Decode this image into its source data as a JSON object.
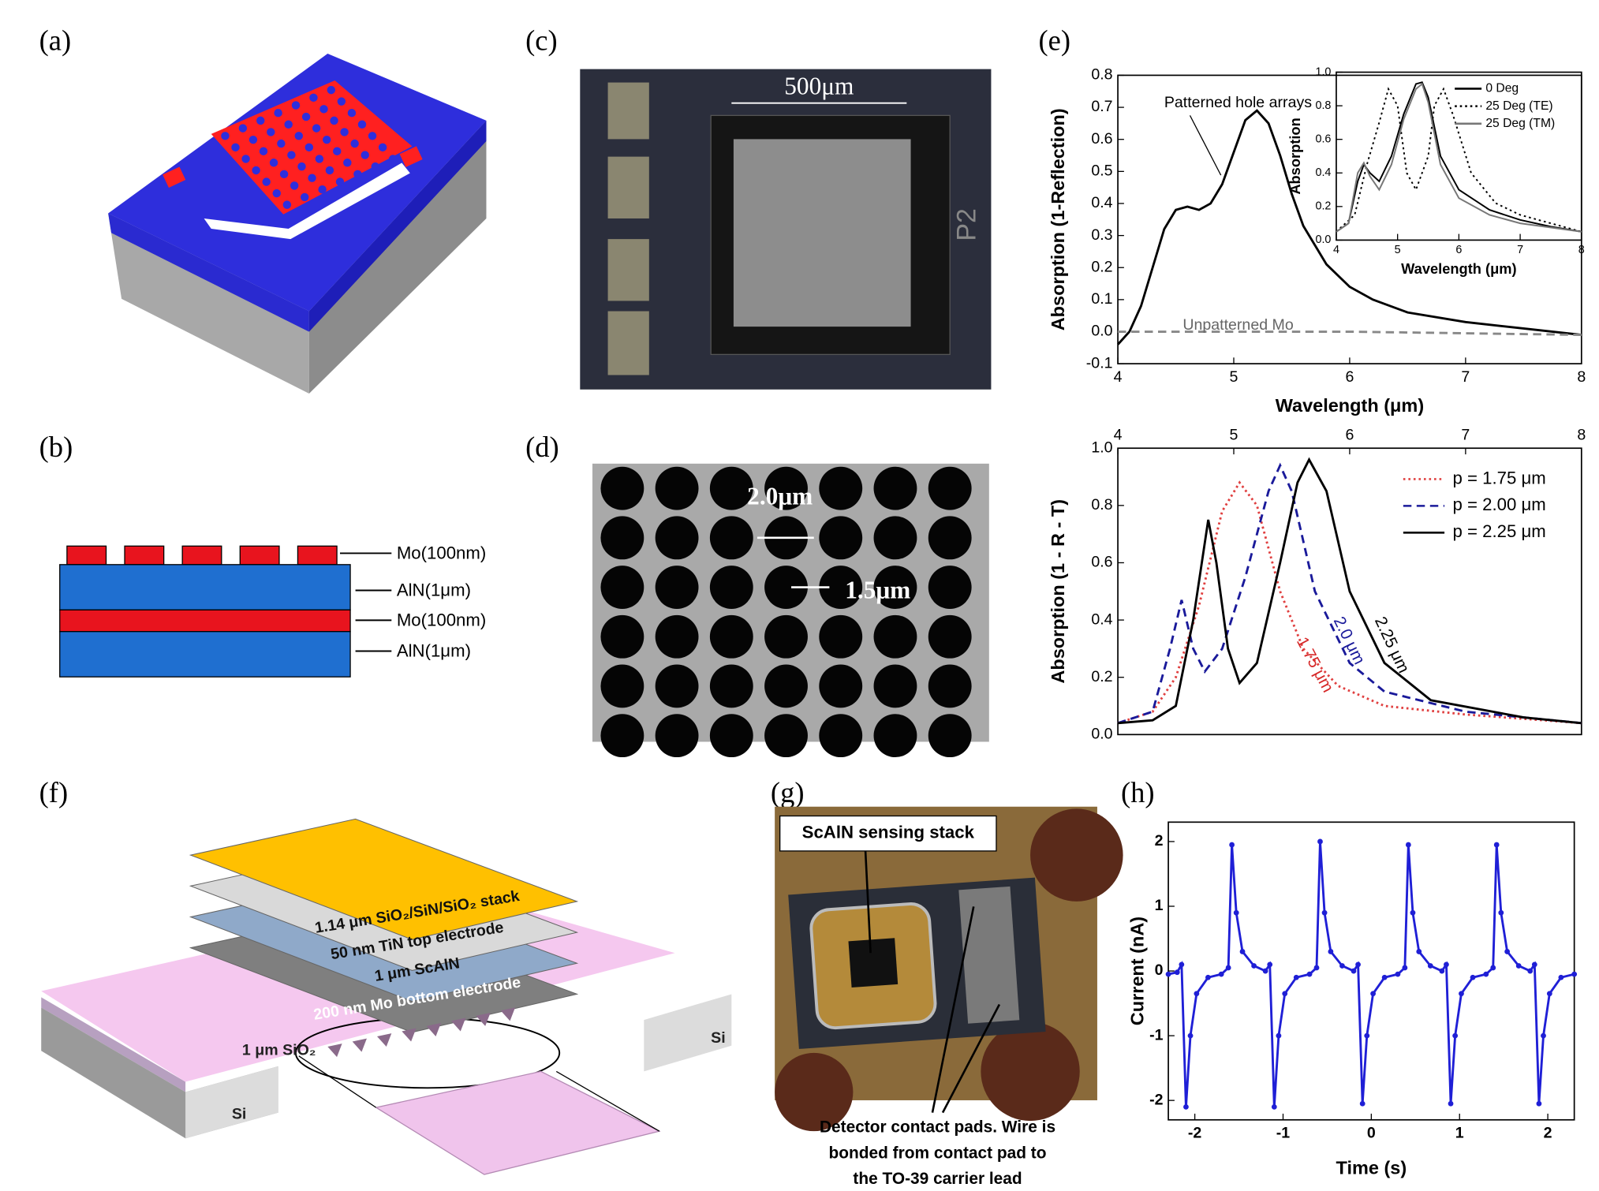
{
  "panel_labels": [
    "(a)",
    "(b)",
    "(c)",
    "(d)",
    "(e)",
    "(f)",
    "(g)",
    "(h)"
  ],
  "panel_b": {
    "layers": [
      "Mo(100nm)",
      "AlN(1μm)",
      "Mo(100nm)",
      "AlN(1μm)"
    ]
  },
  "panel_c": {
    "scale_bar": "500μm",
    "marking": "P2"
  },
  "panel_d": {
    "labels": [
      "2.0μm",
      "1.5μm"
    ]
  },
  "panel_f": {
    "layers": [
      "1.14 μm SiO₂/SiN/SiO₂ stack",
      "50 nm TiN top electrode",
      "1 μm ScAlN",
      "200 nm Mo bottom electrode"
    ],
    "membrane": "1 μm SiO₂",
    "substrate": [
      "Si",
      "Si"
    ]
  },
  "panel_g": {
    "callout": "ScAlN sensing stack",
    "caption": [
      "Detector contact pads. Wire is",
      "bonded from contact pad to",
      "the TO-39 carrier lead"
    ]
  },
  "chart_data": [
    {
      "type": "line",
      "xlabel": "Wavelength (μm)",
      "ylabel": "Absorption (1-Reflection)",
      "xlim": [
        4,
        8
      ],
      "ylim": [
        -0.1,
        0.8
      ],
      "xticks": [
        4,
        5,
        6,
        7,
        8
      ],
      "yticks": [
        -0.1,
        {
          "value": 0,
          "label": "0.0"
        },
        0.1,
        0.2,
        0.3,
        0.4,
        0.5,
        0.6,
        0.7,
        0.8
      ],
      "series": [
        {
          "name": "Patterned hole arrays",
          "color": "#000000",
          "style": "solid",
          "x": [
            4.0,
            4.1,
            4.2,
            4.3,
            4.4,
            4.5,
            4.6,
            4.7,
            4.8,
            4.9,
            5.0,
            5.1,
            5.2,
            5.3,
            5.4,
            5.5,
            5.6,
            5.8,
            6.0,
            6.2,
            6.5,
            7.0,
            7.5,
            8.0
          ],
          "values": [
            -0.04,
            0.0,
            0.08,
            0.2,
            0.32,
            0.38,
            0.39,
            0.38,
            0.4,
            0.46,
            0.56,
            0.66,
            0.69,
            0.65,
            0.55,
            0.43,
            0.33,
            0.21,
            0.14,
            0.1,
            0.06,
            0.03,
            0.01,
            -0.01
          ]
        },
        {
          "name": "Unpatterned Mo",
          "color": "#888888",
          "style": "dashed",
          "x": [
            4.0,
            6.0,
            8.0
          ],
          "values": [
            0.0,
            0.0,
            -0.01
          ]
        }
      ]
    },
    {
      "type": "line",
      "xlabel": "Wavelength (μm)",
      "ylabel": "Absorption",
      "legend": "upper right",
      "xlim": [
        4,
        8
      ],
      "ylim": [
        0,
        1
      ],
      "xticks": [
        4,
        5,
        6,
        7,
        8
      ],
      "yticks": [
        {
          "value": 0,
          "label": "0.0"
        },
        0.2,
        0.4,
        0.6,
        0.8,
        {
          "value": 1,
          "label": "1.0"
        }
      ],
      "series": [
        {
          "name": "0 Deg",
          "color": "#000000",
          "style": "solid",
          "x": [
            4.0,
            4.2,
            4.35,
            4.45,
            4.55,
            4.7,
            4.9,
            5.1,
            5.3,
            5.4,
            5.5,
            5.7,
            6.0,
            6.5,
            7.0,
            7.5,
            8.0
          ],
          "values": [
            0.05,
            0.1,
            0.35,
            0.45,
            0.4,
            0.35,
            0.5,
            0.75,
            0.93,
            0.94,
            0.85,
            0.5,
            0.3,
            0.18,
            0.12,
            0.08,
            0.05
          ]
        },
        {
          "name": "25 Deg (TE)",
          "color": "#000000",
          "style": "dotted",
          "x": [
            4.0,
            4.3,
            4.5,
            4.7,
            4.85,
            5.0,
            5.15,
            5.3,
            5.5,
            5.6,
            5.75,
            5.9,
            6.2,
            6.6,
            7.0,
            7.5,
            8.0
          ],
          "values": [
            0.05,
            0.15,
            0.45,
            0.7,
            0.9,
            0.8,
            0.4,
            0.3,
            0.5,
            0.8,
            0.9,
            0.75,
            0.4,
            0.22,
            0.15,
            0.1,
            0.05
          ]
        },
        {
          "name": "25 Deg (TM)",
          "color": "#777777",
          "style": "solid",
          "x": [
            4.0,
            4.2,
            4.35,
            4.45,
            4.55,
            4.7,
            4.9,
            5.1,
            5.3,
            5.4,
            5.5,
            5.7,
            6.0,
            6.5,
            7.0,
            8.0
          ],
          "values": [
            0.05,
            0.1,
            0.4,
            0.46,
            0.38,
            0.3,
            0.45,
            0.72,
            0.9,
            0.93,
            0.82,
            0.45,
            0.25,
            0.15,
            0.1,
            0.05
          ]
        }
      ]
    },
    {
      "type": "line",
      "ylabel": "Absorption (1 - R - T)",
      "legend": "upper right",
      "xaxis_position": "top",
      "xlim": [
        4,
        8
      ],
      "ylim": [
        0,
        1
      ],
      "xticks": [
        4,
        5,
        6,
        7,
        8
      ],
      "yticks": [
        {
          "value": 0,
          "label": "0.0"
        },
        0.2,
        0.4,
        0.6,
        0.8,
        {
          "value": 1,
          "label": "1.0"
        }
      ],
      "annotations": [
        {
          "text": "1.75 μm",
          "color": "#d62828"
        },
        {
          "text": "2.0 μm",
          "color": "#1a1a9a"
        },
        {
          "text": "2.25 μm",
          "color": "#000000"
        }
      ],
      "series": [
        {
          "name": "p = 1.75 μm",
          "color": "#e04040",
          "style": "dotted",
          "x": [
            4.0,
            4.3,
            4.5,
            4.7,
            4.9,
            5.05,
            5.2,
            5.4,
            5.6,
            5.9,
            6.3,
            7.0,
            8.0
          ],
          "values": [
            0.04,
            0.08,
            0.2,
            0.45,
            0.78,
            0.88,
            0.8,
            0.5,
            0.3,
            0.17,
            0.1,
            0.07,
            0.04
          ]
        },
        {
          "name": "p = 2.00 μm",
          "color": "#1a1a9a",
          "style": "dashed",
          "x": [
            4.0,
            4.3,
            4.45,
            4.55,
            4.65,
            4.75,
            4.9,
            5.1,
            5.3,
            5.4,
            5.5,
            5.7,
            6.0,
            6.3,
            7.0,
            8.0
          ],
          "values": [
            0.04,
            0.08,
            0.3,
            0.47,
            0.3,
            0.22,
            0.3,
            0.55,
            0.85,
            0.94,
            0.85,
            0.5,
            0.25,
            0.15,
            0.08,
            0.04
          ]
        },
        {
          "name": "p = 2.25 μm",
          "color": "#000000",
          "style": "solid",
          "x": [
            4.0,
            4.3,
            4.5,
            4.65,
            4.78,
            4.85,
            4.95,
            5.05,
            5.2,
            5.4,
            5.55,
            5.65,
            5.8,
            6.0,
            6.3,
            6.7,
            7.5,
            8.0
          ],
          "values": [
            0.04,
            0.05,
            0.1,
            0.4,
            0.75,
            0.6,
            0.3,
            0.18,
            0.25,
            0.6,
            0.88,
            0.96,
            0.85,
            0.5,
            0.25,
            0.12,
            0.06,
            0.04
          ]
        }
      ]
    },
    {
      "type": "line",
      "xlabel": "Time (s)",
      "ylabel": "Current (nA)",
      "marker": "circle",
      "xlim": [
        -2.3,
        2.3
      ],
      "ylim": [
        -2.3,
        2.3
      ],
      "xticks": [
        -2,
        -1,
        0,
        1,
        2
      ],
      "yticks": [
        -2,
        -1,
        0,
        1,
        2
      ],
      "series": [
        {
          "color": "#1f1fd6",
          "style": "solid",
          "x": [
            -2.3,
            -2.2,
            -2.15,
            -2.1,
            -2.05,
            -1.98,
            -1.85,
            -1.7,
            -1.62,
            -1.58,
            -1.53,
            -1.46,
            -1.33,
            -1.2,
            -1.15,
            -1.1,
            -1.05,
            -0.98,
            -0.85,
            -0.7,
            -0.62,
            -0.58,
            -0.53,
            -0.46,
            -0.33,
            -0.2,
            -0.15,
            -0.1,
            -0.05,
            0.02,
            0.15,
            0.3,
            0.38,
            0.42,
            0.47,
            0.54,
            0.67,
            0.8,
            0.85,
            0.9,
            0.95,
            1.02,
            1.15,
            1.3,
            1.38,
            1.42,
            1.47,
            1.54,
            1.67,
            1.8,
            1.85,
            1.9,
            1.95,
            2.02,
            2.15,
            2.3
          ],
          "values": [
            -0.05,
            -0.02,
            0.1,
            -2.1,
            -1.0,
            -0.35,
            -0.1,
            -0.05,
            0.05,
            1.95,
            0.9,
            0.3,
            0.08,
            0.0,
            0.1,
            -2.1,
            -1.0,
            -0.35,
            -0.1,
            -0.05,
            0.05,
            2.0,
            0.9,
            0.3,
            0.08,
            0.0,
            0.1,
            -2.05,
            -1.0,
            -0.35,
            -0.1,
            -0.05,
            0.05,
            1.95,
            0.9,
            0.3,
            0.08,
            0.0,
            0.1,
            -2.05,
            -1.0,
            -0.35,
            -0.1,
            -0.05,
            0.05,
            1.95,
            0.9,
            0.3,
            0.08,
            0.0,
            0.1,
            -2.05,
            -1.0,
            -0.35,
            -0.1,
            -0.05
          ]
        }
      ]
    }
  ]
}
